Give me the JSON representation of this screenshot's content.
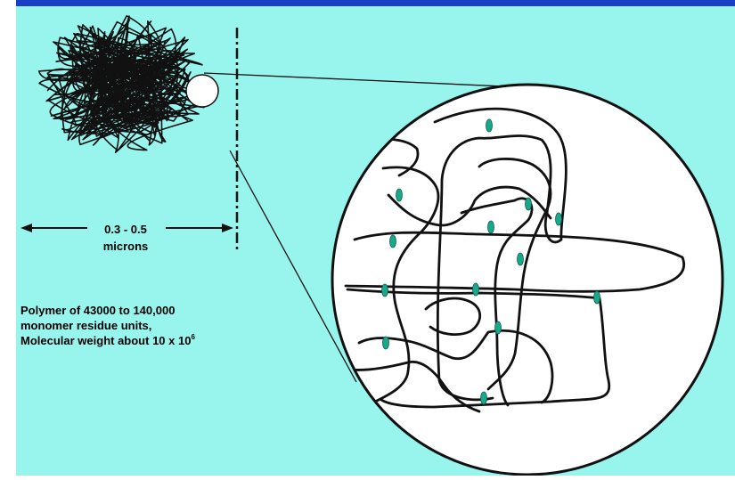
{
  "colors": {
    "background": "#98f5ee",
    "top_bar": "#1a3ec8",
    "line": "#111111",
    "crosslink": "#1aa88a",
    "circle_fill": "#ffffff"
  },
  "diagram": {
    "scale": {
      "label_line1": "0.3 - 0.5",
      "label_line2": "microns"
    },
    "description": {
      "line1": "Polymer of 43000 to 140,000",
      "line2": "monomer residue units,",
      "line3_prefix": "Molecular weight  about  10 x 10",
      "line3_exponent": "6"
    }
  }
}
